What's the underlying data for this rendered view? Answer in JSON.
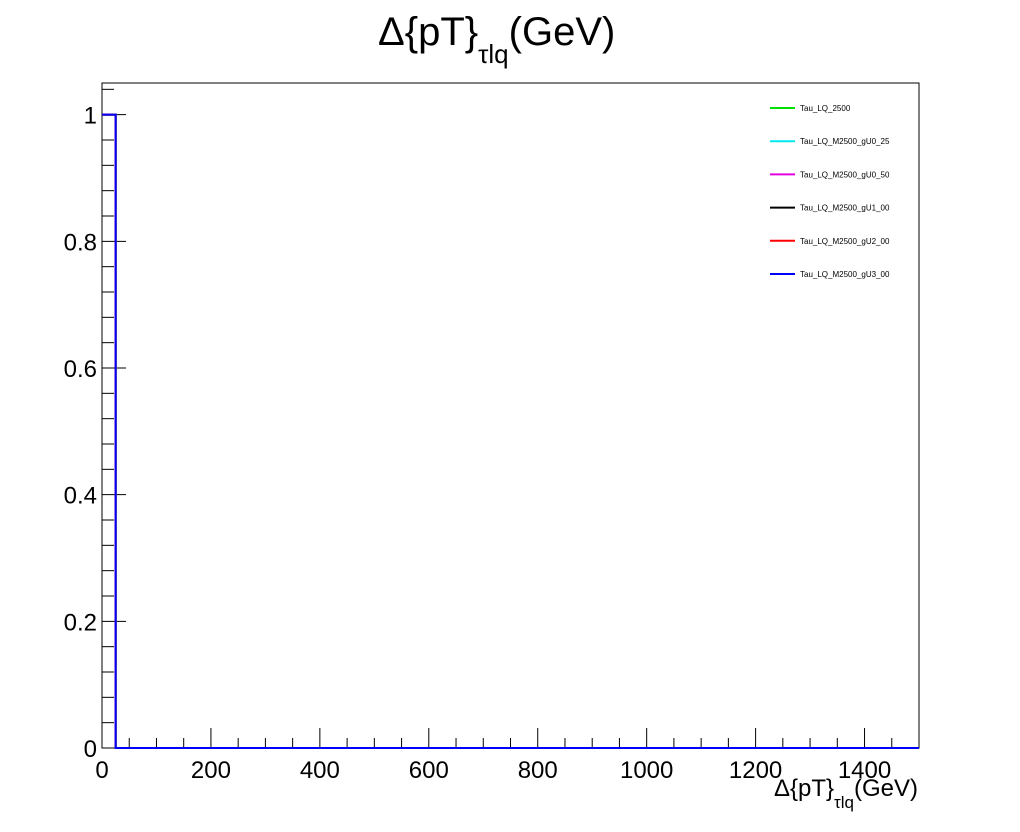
{
  "chart_data": {
    "type": "line",
    "title": {
      "main": "Δ{pT}",
      "sub": "τlq",
      "suffix": "(GeV)"
    },
    "xlabel": {
      "main": "Δ{pT}",
      "sub": "τlq",
      "suffix": "(GeV)"
    },
    "ylabel": "",
    "xlim": [
      0,
      1500
    ],
    "ylim": [
      0,
      1.05
    ],
    "x_ticks": [
      0,
      200,
      400,
      600,
      800,
      1000,
      1200,
      1400
    ],
    "x_tick_labels": [
      "0",
      "200",
      "400",
      "600",
      "800",
      "1000",
      "1200",
      "1400"
    ],
    "y_ticks": [
      0,
      0.2,
      0.4,
      0.6,
      0.8,
      1
    ],
    "y_tick_labels": [
      "0",
      "0.2",
      "0.4",
      "0.6",
      "0.8",
      "1"
    ],
    "grid": false,
    "legend_position": "top-right",
    "bin_width": 25,
    "series": [
      {
        "name": "Tau_LQ_2500",
        "color": "#00e000",
        "peak_bin": [
          0,
          25
        ],
        "peak_value": 1
      },
      {
        "name": "Tau_LQ_M2500_gU0_25",
        "color": "#00e8f0",
        "peak_bin": [
          0,
          25
        ],
        "peak_value": 1
      },
      {
        "name": "Tau_LQ_M2500_gU0_50",
        "color": "#e000e0",
        "peak_bin": [
          0,
          25
        ],
        "peak_value": 1
      },
      {
        "name": "Tau_LQ_M2500_gU1_00",
        "color": "#000000",
        "peak_bin": [
          0,
          25
        ],
        "peak_value": 1
      },
      {
        "name": "Tau_LQ_M2500_gU2_00",
        "color": "#ff0000",
        "peak_bin": [
          0,
          25
        ],
        "peak_value": 1
      },
      {
        "name": "Tau_LQ_M2500_gU3_00",
        "color": "#0000ff",
        "peak_bin": [
          0,
          25
        ],
        "peak_value": 1
      }
    ]
  }
}
